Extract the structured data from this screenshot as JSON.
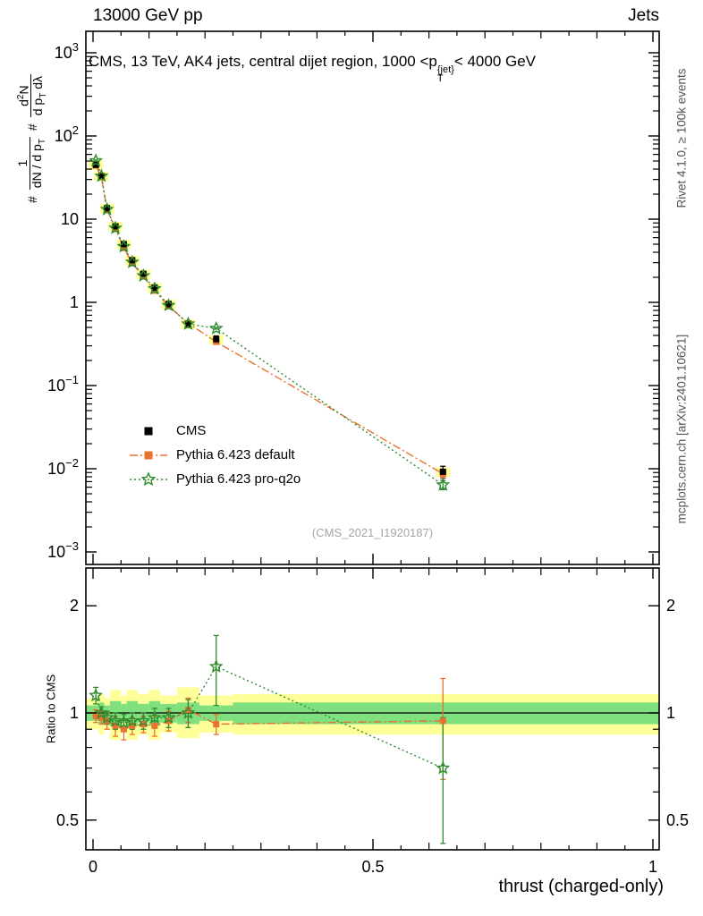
{
  "header": {
    "left": "13000 GeV pp",
    "right": "Jets"
  },
  "title": {
    "pre": "CMS, 13 TeV, AK4 jets, central dijet region, 1000 <p",
    "sup": "{jet}",
    "sub": "T",
    "post": "< 4000 GeV"
  },
  "watermark": "(CMS_2021_I1920187)",
  "side_right": {
    "top": "Rivet 4.1.0, ≥ 100k events",
    "bottom": "mcplots.cern.ch [arXiv:2401.10621]"
  },
  "ylabel": {
    "h1": "#",
    "f1n": "1",
    "f1d": "dN / d p",
    "f1ds": "T",
    "h2": "#",
    "f2n1": "d",
    "f2ns": "2",
    "f2n2": "N",
    "f2d1": "d p",
    "f2ds": "T",
    "f2d2": " dλ"
  },
  "ratio_label": "Ratio to CMS",
  "x_axis_label": "thrust (charged-only)",
  "legend": [
    {
      "label": "CMS"
    },
    {
      "label": "Pythia 6.423 default"
    },
    {
      "label": "Pythia 6.423 pro-q2o"
    }
  ],
  "chart_data": {
    "type": "scatter",
    "title": "CMS, 13 TeV, AK4 jets, central dijet region, 1000 <p{jet}_T< 4000 GeV",
    "xlabel": "thrust (charged-only)",
    "ylabel": "# 1/(dN/dpT) # d2N/(dpT dlambda)",
    "x_range": [
      0,
      1
    ],
    "main_y_scale": "log",
    "main_y_range": [
      0.0007,
      2000
    ],
    "main_y_ticks": [
      {
        "v": 1000,
        "base": "10",
        "exp": "3"
      },
      {
        "v": 100,
        "base": "10",
        "exp": "2"
      },
      {
        "v": 10,
        "base": "10",
        "exp": ""
      },
      {
        "v": 1,
        "base": "1",
        "exp": ""
      },
      {
        "v": 0.1,
        "base": "10",
        "exp": "−1"
      },
      {
        "v": 0.01,
        "base": "10",
        "exp": "−2"
      },
      {
        "v": 0.001,
        "base": "10",
        "exp": "−3"
      }
    ],
    "x_ticks": [
      {
        "v": 0,
        "label": "0"
      },
      {
        "v": 0.5,
        "label": "0.5"
      },
      {
        "v": 1,
        "label": "1"
      }
    ],
    "bin_edges": [
      0,
      0.01,
      0.02,
      0.03,
      0.05,
      0.06,
      0.08,
      0.1,
      0.12,
      0.15,
      0.19,
      0.25,
      1.0
    ],
    "x": [
      0.005,
      0.015,
      0.025,
      0.04,
      0.055,
      0.07,
      0.09,
      0.11,
      0.135,
      0.17,
      0.22,
      0.625
    ],
    "series": [
      {
        "name": "CMS",
        "color": "#000000",
        "marker": "square-filled",
        "line": "none",
        "y": [
          45,
          33,
          13.5,
          8.2,
          5.0,
          3.2,
          2.2,
          1.5,
          0.95,
          0.55,
          0.36,
          0.0092
        ],
        "yerr": [
          3,
          2.2,
          1.0,
          0.6,
          0.38,
          0.25,
          0.17,
          0.12,
          0.08,
          0.05,
          0.035,
          0.0015
        ]
      },
      {
        "name": "Pythia 6.423 default",
        "color": "#e8722e",
        "marker": "square-filled",
        "line": "dashdot",
        "y": [
          44.1,
          32.0,
          12.9,
          7.6,
          4.5,
          2.95,
          2.05,
          1.38,
          0.9,
          0.56,
          0.335,
          0.0087
        ],
        "yerr": [
          0.9,
          0.65,
          0.26,
          0.15,
          0.09,
          0.06,
          0.042,
          0.028,
          0.018,
          0.012,
          0.007,
          0.0009
        ]
      },
      {
        "name": "Pythia 6.423 pro-q2o",
        "color": "#2e8b2e",
        "marker": "star-open",
        "line": "dotted",
        "y": [
          50.4,
          33.0,
          13.1,
          7.8,
          4.7,
          3.04,
          2.09,
          1.46,
          0.92,
          0.55,
          0.486,
          0.0064
        ],
        "yerr": [
          1.0,
          0.66,
          0.27,
          0.16,
          0.1,
          0.062,
          0.043,
          0.03,
          0.019,
          0.012,
          0.01,
          0.0008
        ]
      }
    ],
    "ratio": {
      "label": "Ratio to CMS",
      "y_scale": "log",
      "y_ticks": [
        {
          "v": 0.5,
          "label": "0.5"
        },
        {
          "v": 1,
          "label": "1"
        },
        {
          "v": 2,
          "label": "2"
        }
      ],
      "band_yellow_color": "#ffff99",
      "band_green_color": "#80e080",
      "band_yellow_lo": [
        0.9,
        0.87,
        0.9,
        0.84,
        0.88,
        0.84,
        0.87,
        0.84,
        0.88,
        0.85,
        0.88,
        0.87
      ],
      "band_yellow_hi": [
        1.1,
        1.13,
        1.1,
        1.16,
        1.12,
        1.16,
        1.13,
        1.16,
        1.12,
        1.18,
        1.12,
        1.13
      ],
      "band_green_lo": [
        0.95,
        0.93,
        0.95,
        0.92,
        0.94,
        0.92,
        0.94,
        0.92,
        0.94,
        0.93,
        0.95,
        0.93
      ],
      "band_green_hi": [
        1.05,
        1.07,
        1.05,
        1.08,
        1.06,
        1.08,
        1.06,
        1.08,
        1.06,
        1.07,
        1.05,
        1.07
      ],
      "series": [
        {
          "name": "Pythia 6.423 default",
          "color": "#e8722e",
          "r": [
            0.98,
            0.97,
            0.95,
            0.92,
            0.9,
            0.92,
            0.93,
            0.92,
            0.95,
            1.02,
            0.93,
            0.95
          ],
          "rerr": [
            0.04,
            0.04,
            0.05,
            0.06,
            0.06,
            0.05,
            0.05,
            0.06,
            0.06,
            0.08,
            0.06,
            0.3
          ]
        },
        {
          "name": "Pythia 6.423 pro-q2o",
          "color": "#2e8b2e",
          "r": [
            1.12,
            1.0,
            0.97,
            0.95,
            0.94,
            0.95,
            0.95,
            0.97,
            0.97,
            1.0,
            1.35,
            0.7
          ],
          "rerr": [
            0.06,
            0.04,
            0.04,
            0.05,
            0.05,
            0.05,
            0.05,
            0.06,
            0.06,
            0.09,
            0.3,
            0.27
          ]
        }
      ]
    }
  }
}
